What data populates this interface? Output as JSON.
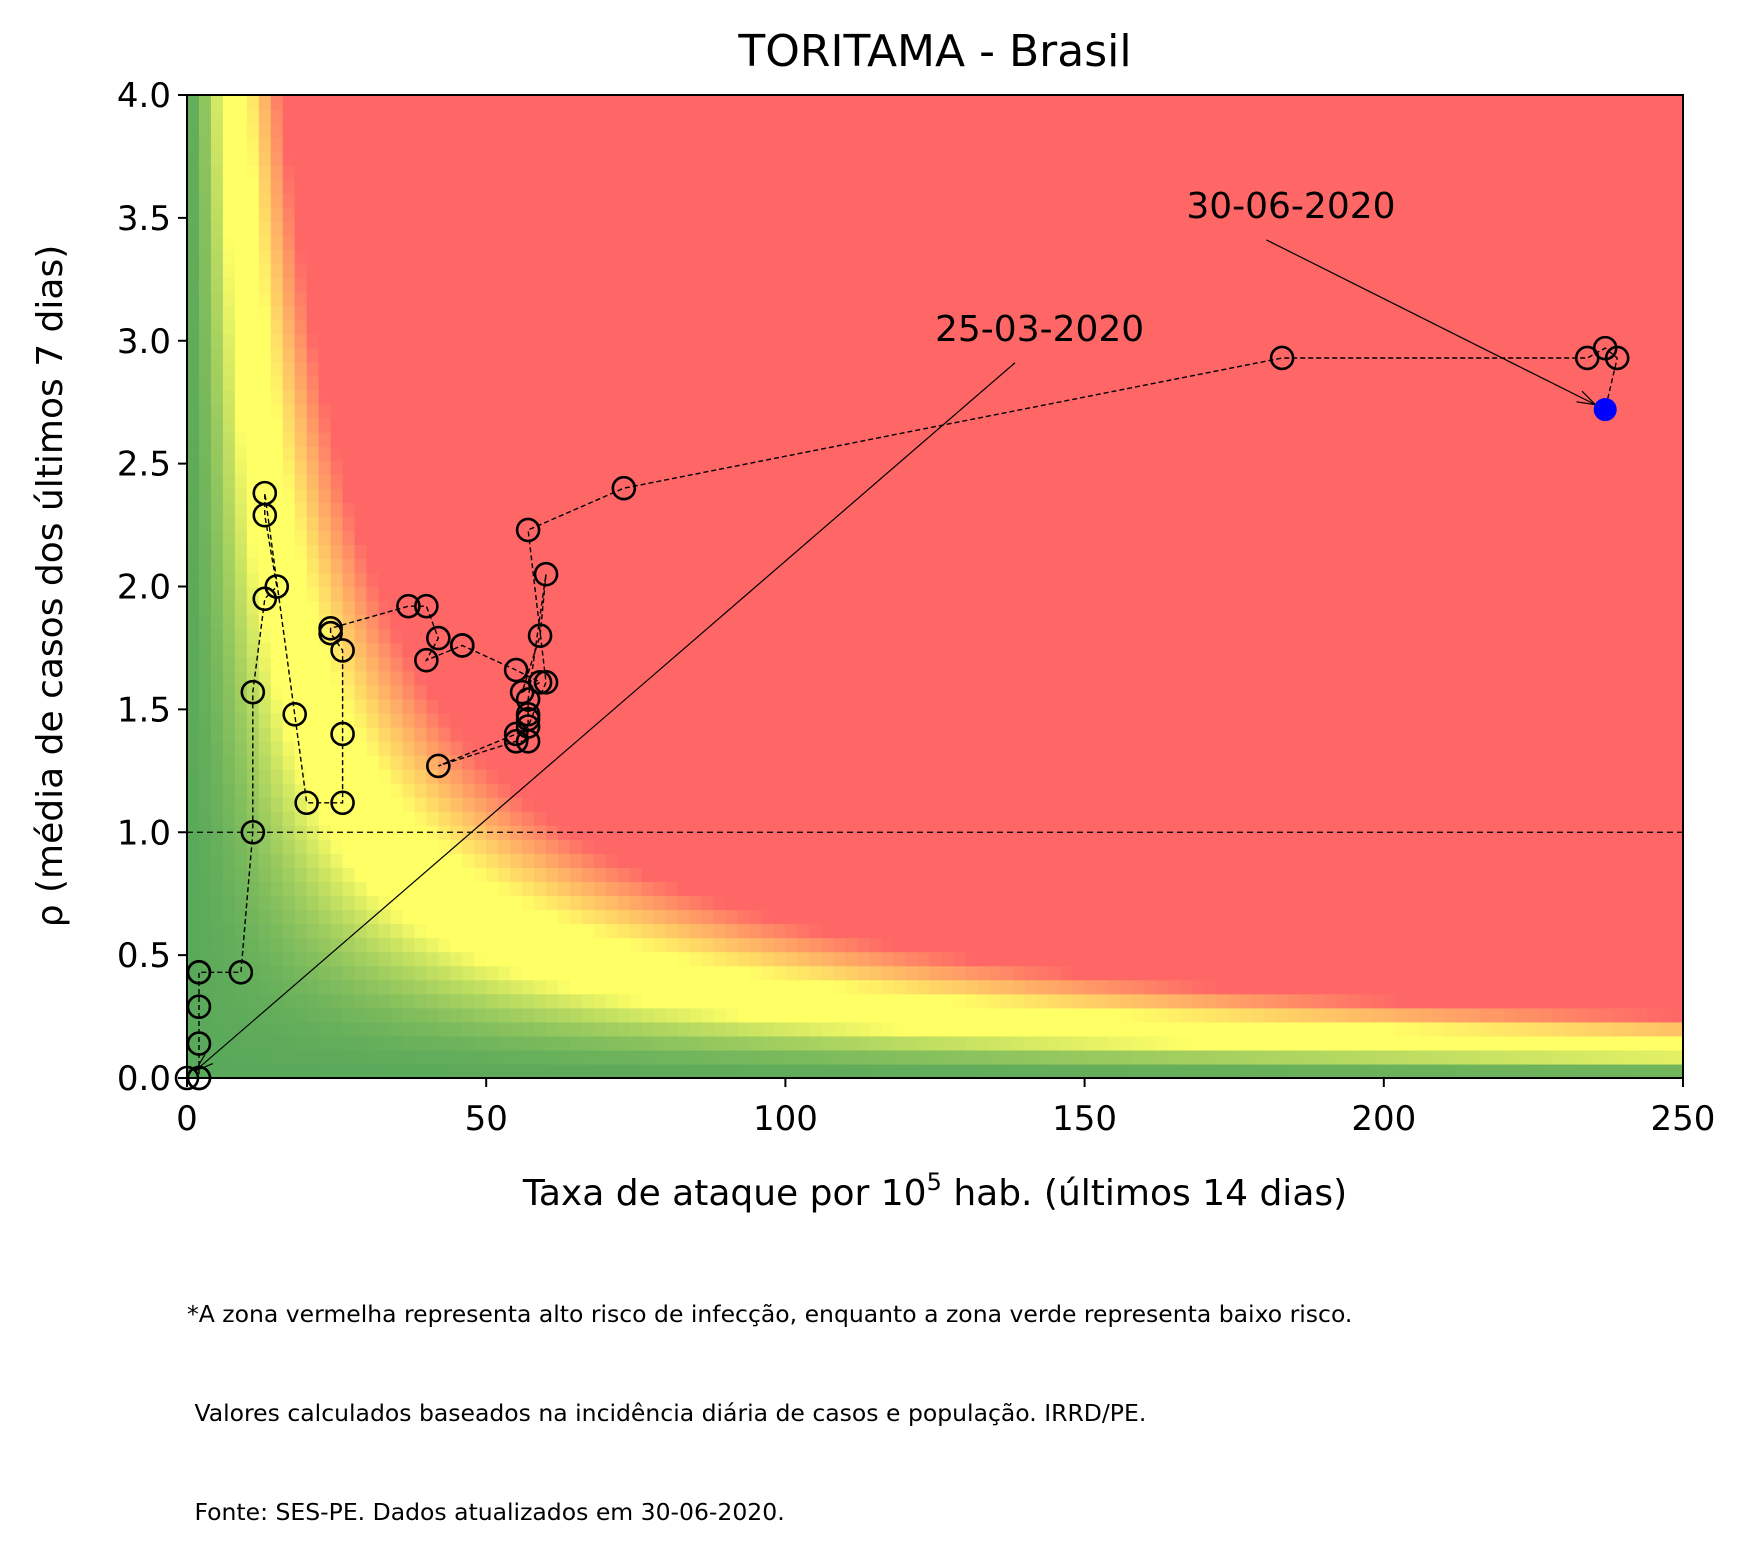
{
  "chart_data": {
    "type": "scatter",
    "title": "TORITAMA - Brasil",
    "xlabel_prefix": "Taxa de ataque por 10",
    "xlabel_sup": "5",
    "xlabel_suffix": " hab. (últimos 14 dias)",
    "ylabel": "ρ (média de casos dos últimos 7 dias)",
    "xlim": [
      0,
      250
    ],
    "ylim": [
      0,
      4
    ],
    "xticks": [
      0,
      50,
      100,
      150,
      200,
      250
    ],
    "yticks": [
      0.0,
      0.5,
      1.0,
      1.5,
      2.0,
      2.5,
      3.0,
      3.5,
      4.0
    ],
    "reference_line_y": 1.0,
    "background": "risk heatmap (green low risk, yellow transition, red high risk)",
    "colors": {
      "green": "#5aa95a",
      "yellow": "#ffff66",
      "red": "#ff6666",
      "last_point": "#0000ff"
    },
    "series": [
      {
        "x": [
          0,
          2,
          2,
          2,
          2,
          2,
          2,
          9,
          11,
          11,
          13,
          15,
          13,
          13,
          18,
          20,
          26,
          26,
          26,
          24,
          24,
          37,
          40,
          42,
          40,
          46,
          46,
          55,
          59,
          56,
          59,
          60,
          57,
          57,
          57,
          57,
          55,
          42,
          55,
          57,
          60,
          57,
          73,
          183,
          234,
          237,
          239,
          237
        ],
        "y": [
          0,
          0,
          0,
          0.14,
          0.29,
          0.43,
          0.43,
          0.43,
          1.0,
          1.57,
          1.95,
          2.0,
          2.29,
          2.38,
          1.48,
          1.12,
          1.12,
          1.4,
          1.74,
          1.81,
          1.83,
          1.92,
          1.92,
          1.79,
          1.7,
          1.76,
          1.76,
          1.66,
          1.61,
          1.57,
          1.8,
          2.05,
          1.54,
          1.48,
          1.46,
          1.37,
          1.37,
          1.27,
          1.4,
          1.43,
          1.61,
          2.23,
          2.4,
          2.93,
          2.93,
          2.97,
          2.93,
          2.72
        ]
      }
    ],
    "annotations": [
      {
        "text": "25-03-2020",
        "x": 0,
        "y": 0,
        "text_x": 125,
        "text_y": 3.0
      },
      {
        "text": "30-06-2020",
        "x": 237,
        "y": 2.72,
        "text_x": 167,
        "text_y": 3.5
      }
    ]
  },
  "footnote": [
    "*A zona vermelha representa alto risco de infecção, enquanto a zona verde representa baixo risco.",
    " Valores calculados baseados na incidência diária de casos e população. IRRD/PE.",
    " Fonte: SES-PE. Dados atualizados em 30-06-2020."
  ]
}
